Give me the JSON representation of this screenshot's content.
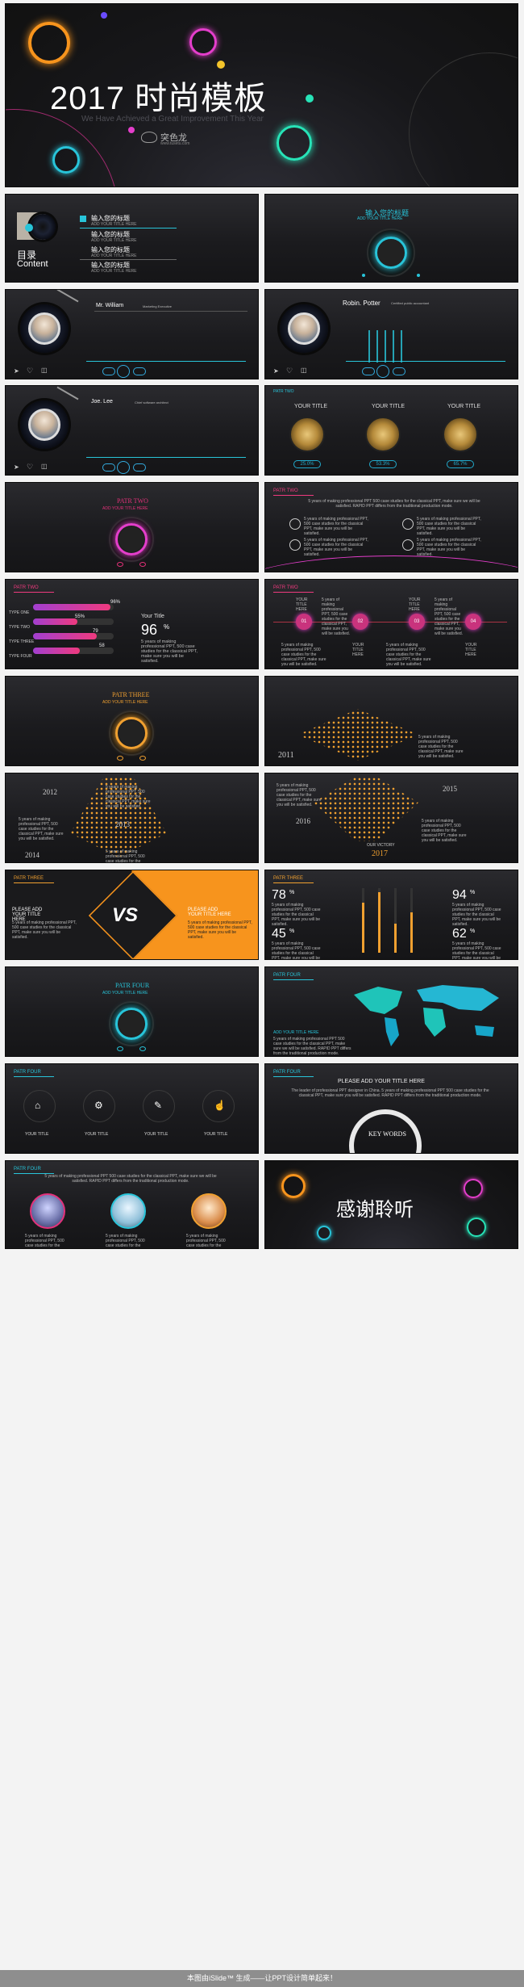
{
  "cover": {
    "title": "2017 时尚模板",
    "subtitle": "We Have Achieved a Great Improvement This Year",
    "brand": "突色龙",
    "brand_url": "www.tusetu.com"
  },
  "toc": {
    "title": "目录",
    "title_en": "Content",
    "items": [
      {
        "label": "输入您的标题",
        "sub": "ADD YOUR TITLE HERE"
      },
      {
        "label": "输入您的标题",
        "sub": "ADD YOUR TITLE HERE"
      },
      {
        "label": "输入您的标题",
        "sub": "ADD YOUR TITLE HERE"
      },
      {
        "label": "输入您的标题",
        "sub": "ADD YOUR TITLE HERE"
      }
    ]
  },
  "section1": {
    "title": "输入您的标题",
    "sub": "ADD YOUR TITLE HERE"
  },
  "profiles": [
    {
      "name": "Mr. William",
      "role": "Marketing Executive"
    },
    {
      "name": "Robin. Potter",
      "role": "Certified public accountant"
    },
    {
      "name": "Joe. Lee",
      "role": "Chief software architect"
    }
  ],
  "knobs": {
    "titles": [
      "YOUR TITLE",
      "YOUR TITLE",
      "YOUR TITLE"
    ],
    "values": [
      "25.0%",
      "53.3%",
      "65.7%"
    ],
    "levels": [
      0.25,
      0.533,
      0.657
    ]
  },
  "part_two": {
    "title": "PATR TWO",
    "sub": "ADD YOUR TITLE HERE"
  },
  "tag_add": "ADD YOUR TITLE HERE",
  "slide_text": {
    "intro": "5 years of making professional PPT 500 case studies for the classical PPT, make sure we will be satisfied. RAPID PPT differs from the traditional production mode.",
    "short": "5 years of making professional PPT, 500 case studies for the classical PPT, make sure you will be satisfied."
  },
  "bars": {
    "rows": [
      {
        "label": "TYPE ONE",
        "value": "96%",
        "pct": 0.96
      },
      {
        "label": "TYPE TWO",
        "value": "55%",
        "pct": 0.55
      },
      {
        "label": "TYPE THREE",
        "value": "79",
        "pct": 0.79
      },
      {
        "label": "TYPE FOUR",
        "value": "58",
        "pct": 0.58
      }
    ],
    "side_title": "Your Title",
    "big": "96",
    "big_unit": "%",
    "side_text": "5 years of making professional PPT, 500 case studies for the classical PPT, make sure you will be satisfied."
  },
  "timeline": {
    "nodes": [
      "01",
      "02",
      "03",
      "04"
    ],
    "title": "YOUR TITLE HERE"
  },
  "part_three": {
    "title": "PATR THREE",
    "sub": "ADD YOUR TITLE HERE"
  },
  "years": [
    "2011",
    "2012",
    "2013",
    "2014",
    "2015",
    "2016"
  ],
  "victory": {
    "label": "OUR VICTORY",
    "year": "2017"
  },
  "vs": {
    "letters": "VS",
    "left_title": "PLEASE ADD YOUR TITLE HERE",
    "right_title": "PLEASE ADD YOUR TITLE HERE"
  },
  "percents": [
    {
      "value": "78",
      "unit": "%",
      "pct": 0.78
    },
    {
      "value": "94",
      "unit": "%",
      "pct": 0.94
    },
    {
      "value": "45",
      "unit": "%",
      "pct": 0.45
    },
    {
      "value": "62",
      "unit": "%",
      "pct": 0.62
    }
  ],
  "part_four": {
    "title": "PATR FOUR",
    "sub": "ADD YOUR TITLE HERE"
  },
  "map_title": "ADD YOUR TITLE HERE",
  "icons_row": {
    "titles": [
      "YOUR TITLE",
      "YOUR TITLE",
      "YOUR TITLE",
      "YOUR TITLE"
    ]
  },
  "keywords": {
    "heading": "PLEASE ADD YOUR TITLE HERE",
    "text": "The leader of professional PPT designer in China. 5 years of making professional PPT 500 case studies for the classical PPT, make sure you will be satisfied. RAPID PPT differs from the traditional production mode.",
    "badge": "KEY WORDS"
  },
  "part_five_tag": "PATR FOUR",
  "thanks": "感谢聆听",
  "footer": "本图由iSlide™ 生成——让PPT设计简单起来！",
  "colors": {
    "pink": "#e4317a",
    "cyan": "#28c4d9",
    "gold": "#f0a030",
    "orange": "#f7941d"
  }
}
